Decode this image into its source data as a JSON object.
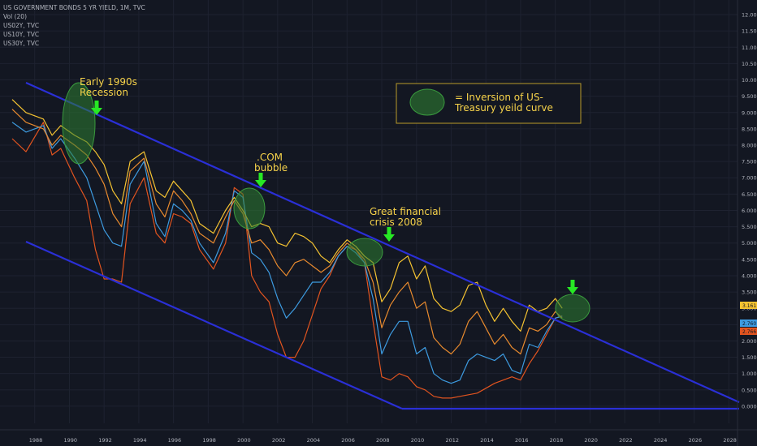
{
  "legend": {
    "title": "US GOVERNMENT BONDS 5 YR YIELD, 1M, TVC",
    "vol": "Vol (20)",
    "s2": "US02Y, TVC",
    "s3": "US10Y, TVC",
    "s4": "US30Y, TVC"
  },
  "annotations": {
    "a1": "Early 1990s",
    "a1b": "Recession",
    "a2": ".COM",
    "a2b": "bubble",
    "a3": "Great financial",
    "a3b": "crisis 2008"
  },
  "key": {
    "line1": "= Inversion of US-",
    "line2": "Treasury yeild curve"
  },
  "price_tags": [
    "3.161",
    "2.760",
    "2.766"
  ],
  "colors": {
    "background": "#131722",
    "us30y": "#f5c331",
    "us10y": "#e88a2e",
    "us05y": "#3d9be0",
    "us02y": "#e2541f",
    "channel": "#2a2fd6",
    "arrow": "#27e824",
    "ellipse": "#2e7d32"
  },
  "chart_data": {
    "type": "line",
    "title": "US GOVERNMENT BONDS 5 YR YIELD, 1M, TVC",
    "xlabel": "",
    "ylabel": "",
    "x_ticks": [
      "1988",
      "1990",
      "1992",
      "1994",
      "1996",
      "1998",
      "2000",
      "2002",
      "2004",
      "2006",
      "2008",
      "2010",
      "2012",
      "2014",
      "2016",
      "2018",
      "2020",
      "2022",
      "2024",
      "2026",
      "2028"
    ],
    "y_ticks": [
      "12.000",
      "11.500",
      "11.000",
      "10.500",
      "10.000",
      "9.500",
      "9.000",
      "8.500",
      "8.000",
      "7.500",
      "7.000",
      "6.500",
      "6.000",
      "5.500",
      "5.000",
      "4.500",
      "4.000",
      "3.500",
      "3.000",
      "2.500",
      "2.000",
      "1.500",
      "1.000",
      "0.500",
      "0.000"
    ],
    "xlim": [
      1986.5,
      2029
    ],
    "ylim": [
      -0.35,
      12.2
    ],
    "x": [
      1987.2,
      1988,
      1989,
      1989.5,
      1990,
      1990.8,
      1991.5,
      1992,
      1992.5,
      1993,
      1993.5,
      1994,
      1994.8,
      1995.5,
      1996,
      1996.5,
      1997,
      1997.5,
      1998,
      1998.8,
      1999.5,
      2000,
      2000.5,
      2001,
      2001.5,
      2002,
      2002.5,
      2003,
      2003.5,
      2004,
      2004.5,
      2005,
      2005.5,
      2006,
      2006.5,
      2007,
      2007.5,
      2008,
      2008.5,
      2009,
      2009.5,
      2010,
      2010.5,
      2011,
      2011.5,
      2012,
      2012.5,
      2013,
      2013.5,
      2014,
      2014.5,
      2015,
      2015.5,
      2016,
      2016.5,
      2017,
      2017.5,
      2018,
      2018.5,
      2018.9
    ],
    "series": [
      {
        "name": "US30Y",
        "color": "#f5c331",
        "values": [
          9.4,
          9.0,
          8.8,
          8.3,
          8.6,
          8.3,
          8.1,
          7.8,
          7.4,
          6.6,
          6.2,
          7.5,
          7.8,
          6.6,
          6.4,
          6.9,
          6.6,
          6.3,
          5.6,
          5.3,
          6.0,
          6.4,
          6.0,
          5.5,
          5.6,
          5.5,
          5.0,
          4.9,
          5.3,
          5.2,
          5.0,
          4.6,
          4.4,
          4.8,
          5.1,
          4.9,
          4.6,
          4.4,
          3.2,
          3.6,
          4.4,
          4.6,
          3.9,
          4.3,
          3.3,
          3.0,
          2.9,
          3.1,
          3.7,
          3.8,
          3.1,
          2.6,
          3.0,
          2.6,
          2.3,
          3.1,
          2.9,
          3.0,
          3.3,
          3.0
        ]
      },
      {
        "name": "US10Y",
        "color": "#e88a2e",
        "values": [
          9.1,
          8.7,
          8.5,
          8.0,
          8.3,
          8.0,
          7.7,
          7.3,
          6.8,
          5.9,
          5.5,
          7.2,
          7.6,
          6.2,
          5.8,
          6.6,
          6.3,
          5.9,
          5.3,
          5.0,
          5.8,
          6.3,
          5.9,
          5.0,
          5.1,
          4.8,
          4.3,
          4.0,
          4.4,
          4.5,
          4.3,
          4.1,
          4.3,
          4.7,
          5.0,
          4.8,
          4.5,
          3.8,
          2.4,
          3.1,
          3.5,
          3.8,
          3.0,
          3.2,
          2.1,
          1.8,
          1.6,
          1.9,
          2.6,
          2.9,
          2.4,
          1.9,
          2.2,
          1.8,
          1.6,
          2.4,
          2.3,
          2.5,
          2.9,
          2.7
        ]
      },
      {
        "name": "US05Y",
        "color": "#3d9be0",
        "values": [
          8.7,
          8.4,
          8.6,
          7.9,
          8.2,
          7.6,
          7.0,
          6.2,
          5.4,
          5.0,
          4.9,
          6.8,
          7.5,
          5.6,
          5.2,
          6.2,
          6.0,
          5.7,
          5.0,
          4.4,
          5.3,
          6.6,
          6.4,
          4.7,
          4.5,
          4.1,
          3.3,
          2.7,
          3.0,
          3.4,
          3.8,
          3.8,
          4.1,
          4.6,
          4.9,
          4.7,
          4.4,
          3.3,
          1.6,
          2.2,
          2.6,
          2.6,
          1.6,
          1.8,
          1.0,
          0.8,
          0.7,
          0.8,
          1.4,
          1.6,
          1.5,
          1.4,
          1.6,
          1.1,
          1.0,
          1.9,
          1.8,
          2.3,
          2.7,
          2.76
        ]
      },
      {
        "name": "US02Y",
        "color": "#e2541f",
        "values": [
          8.2,
          7.8,
          8.7,
          7.7,
          7.9,
          7.0,
          6.3,
          4.8,
          3.9,
          3.9,
          3.8,
          6.2,
          7.0,
          5.3,
          5.0,
          5.9,
          5.8,
          5.6,
          4.8,
          4.2,
          5.0,
          6.7,
          6.5,
          4.0,
          3.5,
          3.2,
          2.2,
          1.5,
          1.5,
          2.0,
          2.8,
          3.6,
          4.0,
          4.6,
          4.9,
          4.8,
          4.4,
          2.6,
          0.9,
          0.8,
          1.0,
          0.9,
          0.6,
          0.5,
          0.3,
          0.25,
          0.25,
          0.3,
          0.35,
          0.4,
          0.55,
          0.7,
          0.8,
          0.9,
          0.8,
          1.3,
          1.7,
          2.2,
          2.7,
          2.766
        ]
      }
    ]
  }
}
